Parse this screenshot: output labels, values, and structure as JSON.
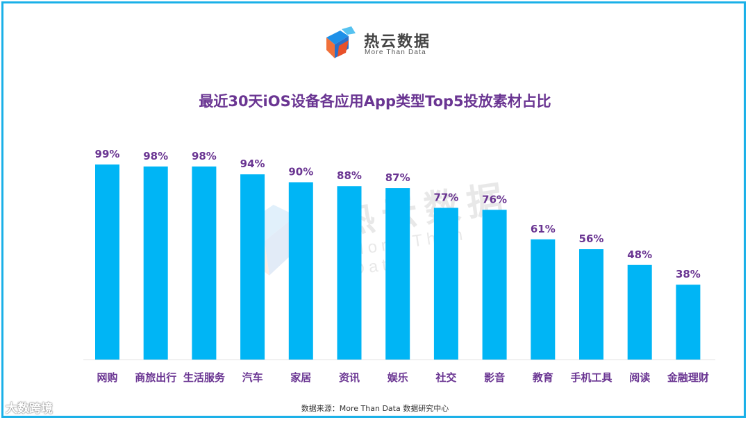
{
  "logo": {
    "name": "热云数据",
    "subtitle": "More Than Data"
  },
  "watermark": {
    "name": "热云数据",
    "subtitle": "More Than Data"
  },
  "source": "数据来源：More Than Data 数据研究中心",
  "corner_mark": "大数跨境",
  "colors": {
    "bar": "#00b5f5",
    "label": "#6a3592",
    "title": "#6a3592",
    "frame": "#1ab0e8"
  },
  "chart_data": {
    "type": "bar",
    "title": "最近30天iOS设备各应用App类型Top5投放素材占比",
    "categories": [
      "网购",
      "商旅出行",
      "生活服务",
      "汽车",
      "家居",
      "资讯",
      "娱乐",
      "社交",
      "影音",
      "教育",
      "手机工具",
      "阅读",
      "金融理财"
    ],
    "values": [
      99,
      98,
      98,
      94,
      90,
      88,
      87,
      77,
      76,
      61,
      56,
      48,
      38
    ],
    "value_labels": [
      "99%",
      "98%",
      "98%",
      "94%",
      "90%",
      "88%",
      "87%",
      "77%",
      "76%",
      "61%",
      "56%",
      "48%",
      "38%"
    ],
    "ylim": [
      0,
      100
    ],
    "unit": "%",
    "xlabel": "",
    "ylabel": ""
  }
}
